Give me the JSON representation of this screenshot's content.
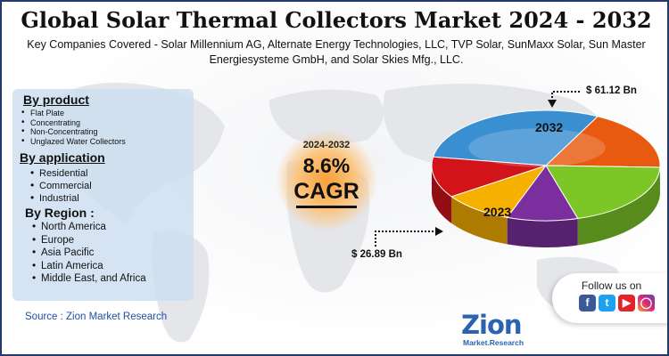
{
  "title": "Global Solar Thermal Collectors Market 2024 - 2032",
  "subtitle": "Key Companies Covered - Solar Millennium AG, Alternate Energy Technologies, LLC, TVP Solar, SunMaxx Solar, Sun Master Energiesysteme GmbH, and Solar Skies Mfg., LLC.",
  "segments": {
    "product": {
      "heading": "By product",
      "items": [
        "Flat Plate",
        "Concentrating",
        "Non-Concentrating",
        "Unglazed Water Collectors"
      ]
    },
    "application": {
      "heading": "By application",
      "items": [
        "Residential",
        "Commercial",
        "Industrial"
      ]
    },
    "region": {
      "heading": "By Region :",
      "items": [
        "North America",
        "Europe",
        "Asia Pacific",
        "Latin America",
        "Middle East, and Africa"
      ]
    }
  },
  "source": "Source : Zion Market Research",
  "cagr": {
    "years": "2024-2032",
    "value": "8.6%",
    "label": "CAGR"
  },
  "chart_data": {
    "type": "pie",
    "labels": [
      "2023",
      "2032"
    ],
    "values": [
      26.89,
      61.12
    ],
    "value_labels": [
      "$ 26.89 Bn",
      "$ 61.12 Bn"
    ],
    "colors": [
      "#3a8fd1",
      "#e85a10",
      "#7cc626",
      "#7b2f9e",
      "#f6b000",
      "#d2141a"
    ]
  },
  "follow": {
    "label": "Follow us on",
    "icons": [
      "facebook-icon",
      "twitter-icon",
      "youtube-icon",
      "instagram-icon"
    ]
  },
  "logo": {
    "main": "Zion",
    "sub": "Market.Research"
  }
}
